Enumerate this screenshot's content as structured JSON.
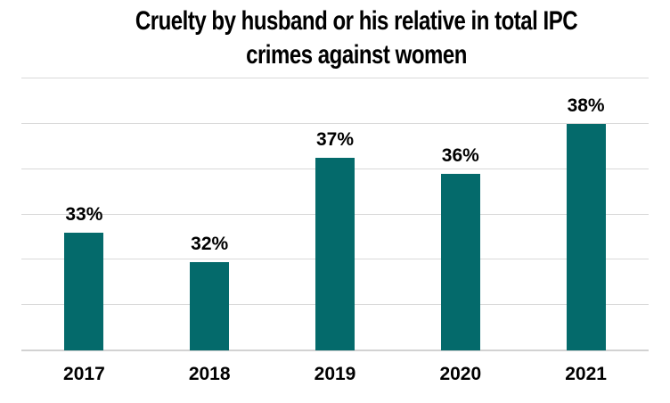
{
  "chart_data": {
    "type": "bar",
    "title": "Cruelty by husband or his relative in total IPC crimes against women",
    "title_lines": [
      "Cruelty by husband or his relative in total IPC",
      "crimes against women"
    ],
    "categories": [
      "2017",
      "2018",
      "2019",
      "2020",
      "2021"
    ],
    "values": [
      33,
      32,
      37,
      36,
      38
    ],
    "data_labels": [
      "33%",
      "32%",
      "37%",
      "36%",
      "38%"
    ],
    "bar_values_plotted": [
      33.2,
      31.9,
      36.5,
      35.8,
      38.0
    ],
    "unit": "%",
    "xlabel": "",
    "ylabel": "",
    "ylim": [
      28,
      40
    ],
    "grid_step": 2,
    "grid": true,
    "y_axis_tick_labels_visible": false,
    "legend_position": "none",
    "colors": {
      "bar": "#046a6b",
      "gridline": "#d9d9d9",
      "axis_line": "#d2d2d2",
      "title_text": "#000000",
      "label_text": "#000000",
      "background": "#ffffff"
    }
  }
}
